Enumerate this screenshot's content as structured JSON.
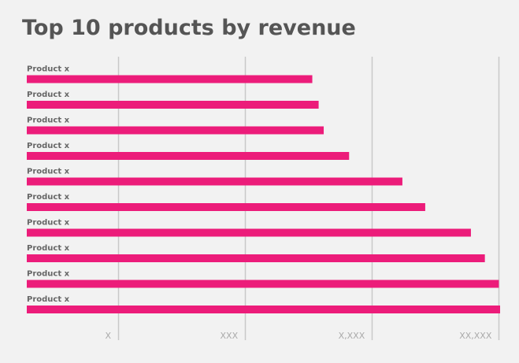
{
  "title": "Top 10 products by revenue",
  "colors": {
    "bar": "#ec1c7a",
    "grid": "#c8c8c8",
    "background": "#f2f2f2"
  },
  "chart_data": {
    "type": "bar",
    "orientation": "horizontal",
    "title": "Top 10 products by revenue",
    "categories": [
      "Product x",
      "Product x",
      "Product x",
      "Product x",
      "Product x",
      "Product x",
      "Product x",
      "Product x",
      "Product x",
      "Product x"
    ],
    "values": [
      2.25,
      2.3,
      2.34,
      2.54,
      2.96,
      3.14,
      3.5,
      3.61,
      3.72,
      3.73
    ],
    "x_ticks": [
      {
        "value": 0.72,
        "label": "X"
      },
      {
        "value": 1.72,
        "label": "XXX"
      },
      {
        "value": 2.72,
        "label": "X,XXX"
      },
      {
        "value": 3.72,
        "label": "XX,XXX"
      }
    ],
    "xlim": [
      0,
      3.73
    ],
    "grid": true,
    "legend": "none"
  }
}
